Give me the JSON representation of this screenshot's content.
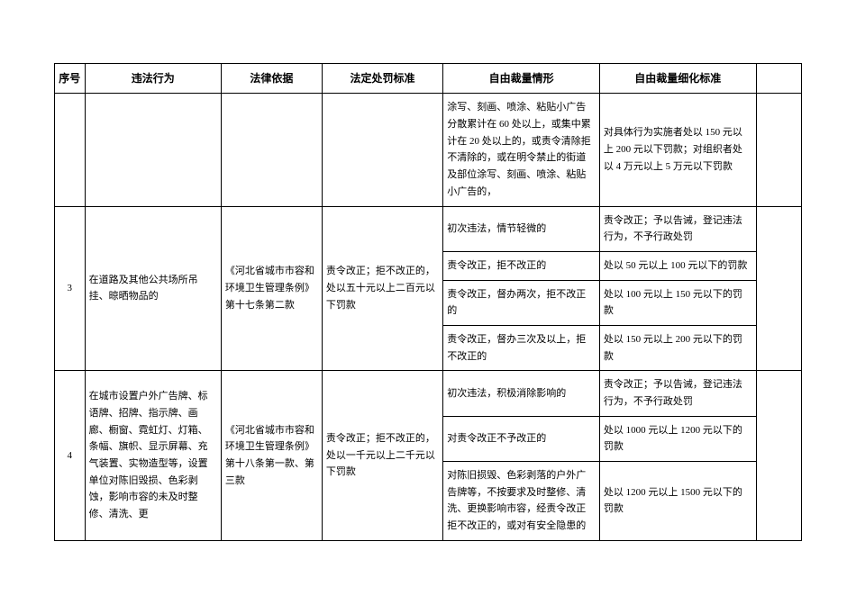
{
  "table": {
    "headers": {
      "num": "序号",
      "behavior": "违法行为",
      "law": "法律依据",
      "penalty": "法定处罚标准",
      "situation": "自由裁量情形",
      "standard": "自由裁量细化标准",
      "extra": ""
    },
    "rows": {
      "r0": {
        "situation": "涂写、刻画、喷涂、粘贴小广告分散累计在 60 处以上，或集中累计在 20 处以上的，或责令清除拒不清除的，或在明令禁止的街道及部位涂写、刻画、喷涂、粘贴小广告的，",
        "standard": "对具体行为实施者处以 150 元以上 200 元以下罚款；对组织者处以 4 万元以上 5 万元以下罚款"
      },
      "r3": {
        "num": "3",
        "behavior": "在道路及其他公共场所吊挂、晾晒物品的",
        "law": "《河北省城市市容和环境卫生管理条例》第十七条第二款",
        "penalty": "责令改正；拒不改正的，处以五十元以上二百元以下罚款",
        "s1": {
          "situation": "初次违法，情节轻微的",
          "standard": "责令改正；予以告诫，登记违法行为，不予行政处罚"
        },
        "s2": {
          "situation": "责令改正，拒不改正的",
          "standard": "处以 50 元以上 100 元以下的罚款"
        },
        "s3": {
          "situation": "责令改正，督办两次，拒不改正的",
          "standard": "处以 100 元以上 150 元以下的罚款"
        },
        "s4": {
          "situation": "责令改正，督办三次及以上，拒不改正的",
          "standard": "处以 150 元以上 200 元以下的罚款"
        }
      },
      "r4": {
        "num": "4",
        "behavior": "在城市设置户外广告牌、标语牌、招牌、指示牌、画廊、橱窗、霓虹灯、灯箱、条幅、旗帜、显示屏幕、充气装置、实物造型等，设置单位对陈旧毁损、色彩剥蚀，影响市容的未及时整修、清洗、更",
        "law": "《河北省城市市容和环境卫生管理条例》第十八条第一款、第三款",
        "penalty": "责令改正；拒不改正的，处以一千元以上二千元以下罚款",
        "s1": {
          "situation": "初次违法，积极消除影响的",
          "standard": "责令改正；予以告诫，登记违法行为，不予行政处罚"
        },
        "s2": {
          "situation": "对责令改正不予改正的",
          "standard": "处以 1000 元以上 1200 元以下的罚款"
        },
        "s3": {
          "situation": "对陈旧损毁、色彩剥落的户外广告牌等，不按要求及时整修、清洗、更换影响市容，经责令改正拒不改正的，或对有安全隐患的",
          "standard": "处以 1200 元以上 1500 元以下的罚款"
        }
      }
    }
  }
}
